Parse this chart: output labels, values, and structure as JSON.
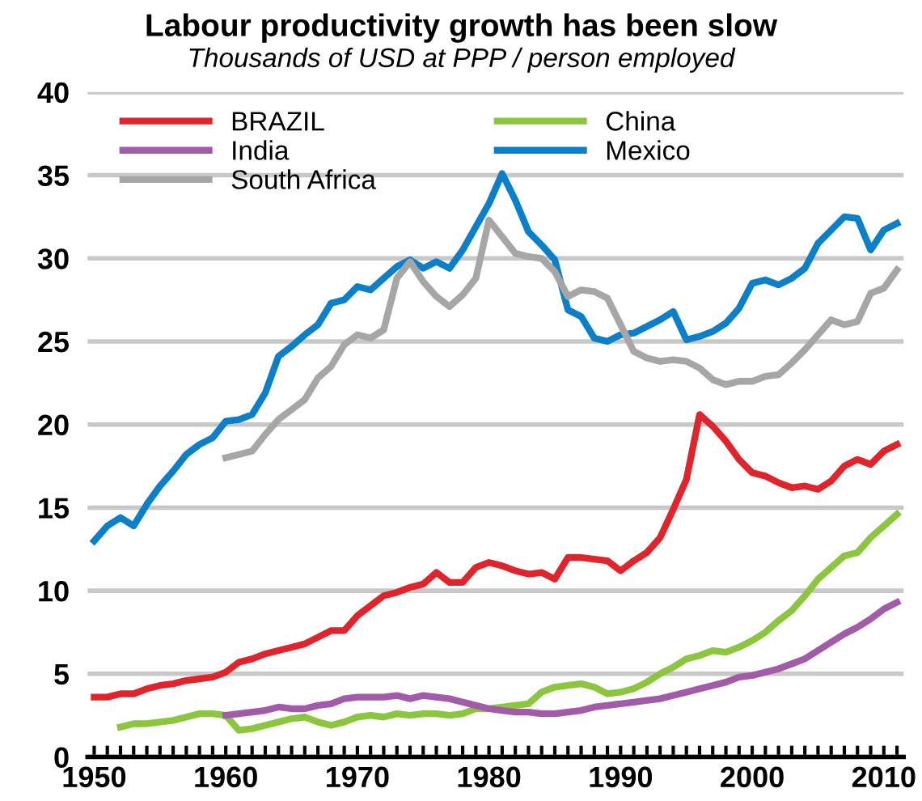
{
  "chart_data": {
    "type": "line",
    "title": "Labour productivity growth has been slow",
    "subtitle": "Thousands of USD at PPP / person employed",
    "xlim": [
      1949.5,
      2011.5
    ],
    "ylim": [
      0,
      40
    ],
    "yticks": [
      0,
      5,
      10,
      15,
      20,
      25,
      30,
      35,
      40
    ],
    "xticks": [
      1950,
      {
        "value": 1951,
        "label": null
      },
      {
        "value": 1952,
        "label": null
      },
      {
        "value": 1953,
        "label": null
      },
      {
        "value": 1954,
        "label": null
      },
      {
        "value": 1955,
        "label": null
      },
      {
        "value": 1956,
        "label": null
      },
      {
        "value": 1957,
        "label": null
      },
      {
        "value": 1958,
        "label": null
      },
      {
        "value": 1959,
        "label": null
      },
      1960,
      {
        "value": 1961,
        "label": null
      },
      {
        "value": 1962,
        "label": null
      },
      {
        "value": 1963,
        "label": null
      },
      {
        "value": 1964,
        "label": null
      },
      {
        "value": 1965,
        "label": null
      },
      {
        "value": 1966,
        "label": null
      },
      {
        "value": 1967,
        "label": null
      },
      {
        "value": 1968,
        "label": null
      },
      {
        "value": 1969,
        "label": null
      },
      1970,
      {
        "value": 1971,
        "label": null
      },
      {
        "value": 1972,
        "label": null
      },
      {
        "value": 1973,
        "label": null
      },
      {
        "value": 1974,
        "label": null
      },
      {
        "value": 1975,
        "label": null
      },
      {
        "value": 1976,
        "label": null
      },
      {
        "value": 1977,
        "label": null
      },
      {
        "value": 1978,
        "label": null
      },
      {
        "value": 1979,
        "label": null
      },
      1980,
      {
        "value": 1981,
        "label": null
      },
      {
        "value": 1982,
        "label": null
      },
      {
        "value": 1983,
        "label": null
      },
      {
        "value": 1984,
        "label": null
      },
      {
        "value": 1985,
        "label": null
      },
      {
        "value": 1986,
        "label": null
      },
      {
        "value": 1987,
        "label": null
      },
      {
        "value": 1988,
        "label": null
      },
      {
        "value": 1989,
        "label": null
      },
      1990,
      {
        "value": 1991,
        "label": null
      },
      {
        "value": 1992,
        "label": null
      },
      {
        "value": 1993,
        "label": null
      },
      {
        "value": 1994,
        "label": null
      },
      {
        "value": 1995,
        "label": null
      },
      {
        "value": 1996,
        "label": null
      },
      {
        "value": 1997,
        "label": null
      },
      {
        "value": 1998,
        "label": null
      },
      {
        "value": 1999,
        "label": null
      },
      2000,
      {
        "value": 2001,
        "label": null
      },
      {
        "value": 2002,
        "label": null
      },
      {
        "value": 2003,
        "label": null
      },
      {
        "value": 2004,
        "label": null
      },
      {
        "value": 2005,
        "label": null
      },
      {
        "value": 2006,
        "label": null
      },
      {
        "value": 2007,
        "label": null
      },
      {
        "value": 2008,
        "label": null
      },
      {
        "value": 2009,
        "label": null
      },
      2010,
      {
        "value": 2011,
        "label": null
      }
    ],
    "grid": "y",
    "legend": "top left",
    "marker": "none",
    "line_style": "solid",
    "series": [
      {
        "name": "BRAZIL",
        "color": "#e0242b",
        "x": [
          1950,
          1951,
          1952,
          1953,
          1954,
          1955,
          1956,
          1957,
          1958,
          1959,
          1960,
          1961,
          1962,
          1963,
          1964,
          1965,
          1966,
          1967,
          1968,
          1969,
          1970,
          1971,
          1972,
          1973,
          1974,
          1975,
          1976,
          1977,
          1978,
          1979,
          1980,
          1981,
          1982,
          1983,
          1984,
          1985,
          1986,
          1987,
          1988,
          1989,
          1990,
          1991,
          1992,
          1993,
          1994,
          1995,
          1996,
          1997,
          1998,
          1999,
          2000,
          2001,
          2002,
          2003,
          2004,
          2005,
          2006,
          2007,
          2008,
          2009,
          2010,
          2011
        ],
        "values": [
          3.6,
          3.6,
          3.8,
          3.8,
          4.1,
          4.3,
          4.4,
          4.6,
          4.7,
          4.8,
          5.1,
          5.7,
          5.9,
          6.2,
          6.4,
          6.6,
          6.8,
          7.2,
          7.6,
          7.6,
          8.5,
          9.1,
          9.7,
          9.9,
          10.2,
          10.4,
          11.1,
          10.5,
          10.5,
          11.4,
          11.7,
          11.5,
          11.2,
          11.0,
          11.1,
          10.7,
          12.0,
          12.0,
          11.9,
          11.8,
          11.2,
          11.8,
          12.3,
          13.2,
          14.9,
          16.7,
          20.6,
          19.9,
          19.0,
          17.9,
          17.1,
          16.9,
          16.5,
          16.2,
          16.3,
          16.1,
          16.6,
          17.5,
          17.9,
          17.6,
          18.4,
          18.8
        ]
      },
      {
        "name": "China",
        "color": "#8cc63f",
        "x": [
          1952,
          1953,
          1954,
          1955,
          1956,
          1957,
          1958,
          1959,
          1960,
          1961,
          1962,
          1963,
          1964,
          1965,
          1966,
          1967,
          1968,
          1969,
          1970,
          1971,
          1972,
          1973,
          1974,
          1975,
          1976,
          1977,
          1978,
          1979,
          1980,
          1981,
          1982,
          1983,
          1984,
          1985,
          1986,
          1987,
          1988,
          1989,
          1990,
          1991,
          1992,
          1993,
          1994,
          1995,
          1996,
          1997,
          1998,
          1999,
          2000,
          2001,
          2002,
          2003,
          2004,
          2005,
          2006,
          2007,
          2008,
          2009,
          2010,
          2011
        ],
        "values": [
          1.8,
          2.0,
          2.0,
          2.1,
          2.2,
          2.4,
          2.6,
          2.6,
          2.5,
          1.6,
          1.7,
          1.9,
          2.1,
          2.3,
          2.4,
          2.1,
          1.9,
          2.1,
          2.4,
          2.5,
          2.4,
          2.6,
          2.5,
          2.6,
          2.6,
          2.5,
          2.6,
          2.9,
          2.9,
          3.0,
          3.1,
          3.2,
          3.9,
          4.2,
          4.3,
          4.4,
          4.2,
          3.8,
          3.9,
          4.1,
          4.5,
          5.0,
          5.4,
          5.9,
          6.1,
          6.4,
          6.3,
          6.6,
          7.0,
          7.5,
          8.2,
          8.8,
          9.7,
          10.7,
          11.4,
          12.1,
          12.3,
          13.2,
          13.9,
          14.6
        ]
      },
      {
        "name": "India",
        "color": "#a25ba8",
        "x": [
          1960,
          1961,
          1962,
          1963,
          1964,
          1965,
          1966,
          1967,
          1968,
          1969,
          1970,
          1971,
          1972,
          1973,
          1974,
          1975,
          1976,
          1977,
          1978,
          1979,
          1980,
          1981,
          1982,
          1983,
          1984,
          1985,
          1986,
          1987,
          1988,
          1989,
          1990,
          1991,
          1992,
          1993,
          1994,
          1995,
          1996,
          1997,
          1998,
          1999,
          2000,
          2001,
          2002,
          2003,
          2004,
          2005,
          2006,
          2007,
          2008,
          2009,
          2010,
          2011
        ],
        "values": [
          2.5,
          2.6,
          2.7,
          2.8,
          3.0,
          2.9,
          2.9,
          3.1,
          3.2,
          3.5,
          3.6,
          3.6,
          3.6,
          3.7,
          3.5,
          3.7,
          3.6,
          3.5,
          3.3,
          3.1,
          2.9,
          2.8,
          2.7,
          2.7,
          2.6,
          2.6,
          2.7,
          2.8,
          3.0,
          3.1,
          3.2,
          3.3,
          3.4,
          3.5,
          3.7,
          3.9,
          4.1,
          4.3,
          4.5,
          4.8,
          4.9,
          5.1,
          5.3,
          5.6,
          5.9,
          6.4,
          6.9,
          7.4,
          7.8,
          8.3,
          8.9,
          9.3
        ]
      },
      {
        "name": "Mexico",
        "color": "#0b7fc7",
        "x": [
          1950,
          1951,
          1952,
          1953,
          1954,
          1955,
          1956,
          1957,
          1958,
          1959,
          1960,
          1961,
          1962,
          1963,
          1964,
          1965,
          1966,
          1967,
          1968,
          1969,
          1970,
          1971,
          1972,
          1973,
          1974,
          1975,
          1976,
          1977,
          1978,
          1979,
          1980,
          1981,
          1982,
          1983,
          1984,
          1985,
          1986,
          1987,
          1988,
          1989,
          1990,
          1991,
          1992,
          1993,
          1994,
          1995,
          1996,
          1997,
          1998,
          1999,
          2000,
          2001,
          2002,
          2003,
          2004,
          2005,
          2006,
          2007,
          2008,
          2009,
          2010,
          2011
        ],
        "values": [
          13.0,
          13.9,
          14.4,
          13.9,
          15.2,
          16.3,
          17.2,
          18.2,
          18.8,
          19.2,
          20.2,
          20.3,
          20.6,
          21.9,
          24.1,
          24.7,
          25.4,
          26.0,
          27.3,
          27.5,
          28.3,
          28.1,
          28.8,
          29.5,
          29.9,
          29.4,
          29.8,
          29.4,
          30.5,
          31.9,
          33.3,
          35.1,
          33.5,
          31.6,
          30.8,
          29.9,
          26.9,
          26.5,
          25.2,
          25.0,
          25.4,
          25.5,
          25.9,
          26.3,
          26.8,
          25.1,
          25.3,
          25.6,
          26.1,
          27.0,
          28.5,
          28.7,
          28.4,
          28.8,
          29.4,
          30.9,
          31.7,
          32.5,
          32.4,
          30.5,
          31.7,
          32.1
        ]
      },
      {
        "name": "South Africa",
        "color": "#a6a6a6",
        "x": [
          1960,
          1961,
          1962,
          1963,
          1964,
          1965,
          1966,
          1967,
          1968,
          1969,
          1970,
          1971,
          1972,
          1973,
          1974,
          1975,
          1976,
          1977,
          1978,
          1979,
          1980,
          1981,
          1982,
          1983,
          1984,
          1985,
          1986,
          1987,
          1988,
          1989,
          1990,
          1991,
          1992,
          1993,
          1994,
          1995,
          1996,
          1997,
          1998,
          1999,
          2000,
          2001,
          2002,
          2003,
          2004,
          2005,
          2006,
          2007,
          2008,
          2009,
          2010,
          2011
        ],
        "values": [
          18.0,
          18.2,
          18.4,
          19.4,
          20.3,
          20.9,
          21.5,
          22.8,
          23.5,
          24.8,
          25.4,
          25.2,
          25.7,
          28.8,
          29.8,
          28.6,
          27.7,
          27.1,
          27.8,
          28.8,
          32.3,
          31.3,
          30.3,
          30.1,
          30.0,
          29.2,
          27.7,
          28.1,
          28.0,
          27.6,
          26.0,
          24.4,
          24.0,
          23.8,
          23.9,
          23.8,
          23.4,
          22.7,
          22.4,
          22.6,
          22.6,
          22.9,
          23.0,
          23.7,
          24.5,
          25.4,
          26.3,
          26.0,
          26.2,
          27.9,
          28.2,
          29.3
        ]
      }
    ]
  }
}
